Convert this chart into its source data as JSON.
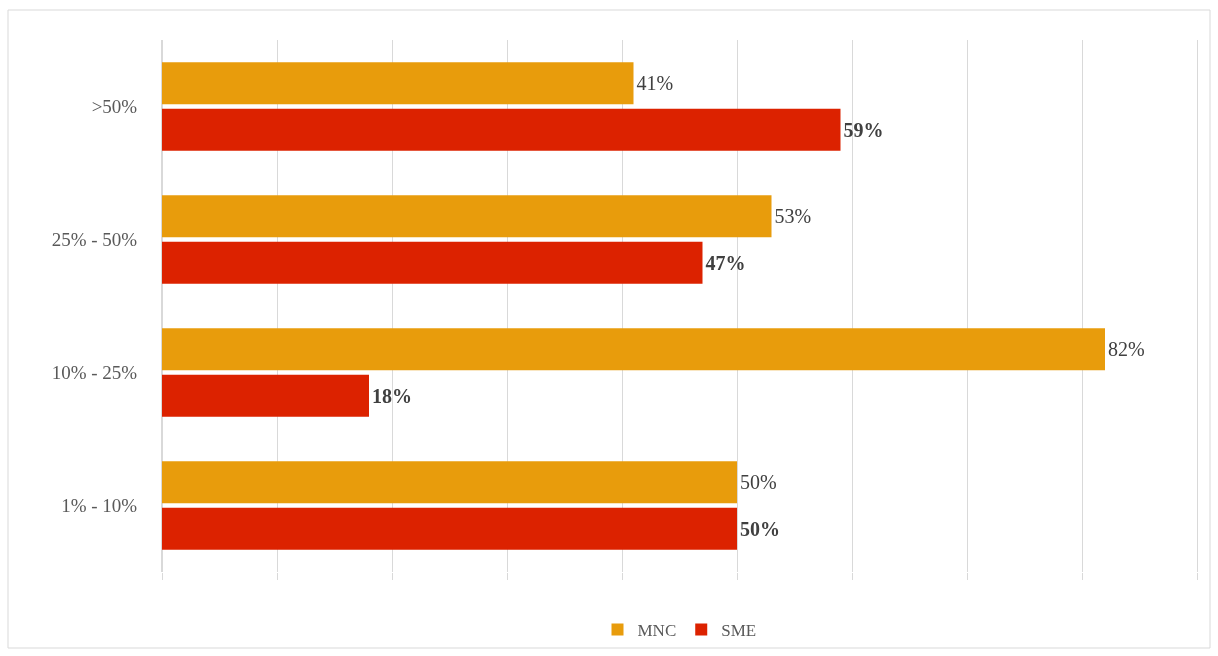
{
  "chart_data": {
    "type": "bar",
    "orientation": "horizontal",
    "categories": [
      ">50%",
      "25% - 50%",
      "10% - 25%",
      "1% - 10%"
    ],
    "series": [
      {
        "name": "MNC",
        "color": "#e89c0c",
        "values": [
          41,
          53,
          82,
          50
        ],
        "value_labels": [
          "41%",
          "53%",
          "82%",
          "50%"
        ]
      },
      {
        "name": "SME",
        "color": "#dc2200",
        "values": [
          59,
          47,
          18,
          50
        ],
        "value_labels": [
          "59%",
          "47%",
          "18%",
          "50%"
        ]
      }
    ],
    "xlim": [
      0,
      90
    ],
    "xticks": [
      {
        "value": 0,
        "label": null
      },
      {
        "value": 10,
        "label": null
      },
      {
        "value": 20,
        "label": null
      },
      {
        "value": 30,
        "label": null
      },
      {
        "value": 40,
        "label": null
      },
      {
        "value": 50,
        "label": null
      },
      {
        "value": 60,
        "label": null
      },
      {
        "value": 70,
        "label": null
      },
      {
        "value": 80,
        "label": null
      },
      {
        "value": 90,
        "label": null
      }
    ],
    "grid": "x",
    "legend": "bottom",
    "tick_labels": "y"
  }
}
